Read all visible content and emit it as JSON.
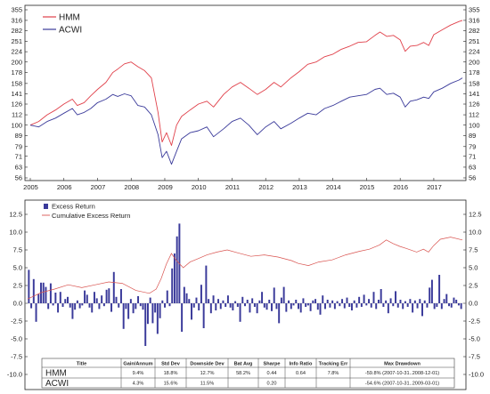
{
  "chart_data": [
    {
      "type": "line",
      "x_ticks": [
        "2005",
        "2006",
        "2007",
        "2008",
        "2009",
        "2010",
        "2011",
        "2012",
        "2013",
        "2014",
        "2015",
        "2016",
        "2017"
      ],
      "y_ticks": [
        56,
        63,
        71,
        79,
        89,
        100,
        112,
        126,
        141,
        158,
        178,
        200,
        224,
        251,
        282,
        316,
        355
      ],
      "y_scale": "log",
      "ylim": [
        56,
        355
      ],
      "x_range": [
        2005.0,
        2017.85
      ],
      "series": [
        {
          "name": "HMM",
          "color": "#e0404a",
          "points": [
            [
              2005.0,
              100
            ],
            [
              2005.25,
              104
            ],
            [
              2005.5,
              112
            ],
            [
              2005.75,
              118
            ],
            [
              2006.0,
              126
            ],
            [
              2006.25,
              133
            ],
            [
              2006.4,
              124
            ],
            [
              2006.6,
              128
            ],
            [
              2006.8,
              138
            ],
            [
              2007.0,
              148
            ],
            [
              2007.25,
              160
            ],
            [
              2007.45,
              178
            ],
            [
              2007.6,
              185
            ],
            [
              2007.8,
              196
            ],
            [
              2008.0,
              200
            ],
            [
              2008.2,
              190
            ],
            [
              2008.4,
              182
            ],
            [
              2008.6,
              168
            ],
            [
              2008.8,
              115
            ],
            [
              2008.92,
              83
            ],
            [
              2009.05,
              92
            ],
            [
              2009.2,
              80
            ],
            [
              2009.35,
              100
            ],
            [
              2009.5,
              110
            ],
            [
              2009.75,
              118
            ],
            [
              2010.0,
              126
            ],
            [
              2010.25,
              130
            ],
            [
              2010.45,
              122
            ],
            [
              2010.75,
              140
            ],
            [
              2011.0,
              152
            ],
            [
              2011.25,
              160
            ],
            [
              2011.5,
              150
            ],
            [
              2011.75,
              140
            ],
            [
              2012.0,
              148
            ],
            [
              2012.25,
              160
            ],
            [
              2012.45,
              152
            ],
            [
              2012.75,
              168
            ],
            [
              2013.0,
              180
            ],
            [
              2013.25,
              195
            ],
            [
              2013.5,
              200
            ],
            [
              2013.75,
              212
            ],
            [
              2014.0,
              218
            ],
            [
              2014.25,
              230
            ],
            [
              2014.5,
              238
            ],
            [
              2014.75,
              248
            ],
            [
              2015.0,
              250
            ],
            [
              2015.25,
              268
            ],
            [
              2015.4,
              278
            ],
            [
              2015.6,
              265
            ],
            [
              2015.8,
              268
            ],
            [
              2016.0,
              255
            ],
            [
              2016.15,
              225
            ],
            [
              2016.3,
              238
            ],
            [
              2016.5,
              240
            ],
            [
              2016.7,
              248
            ],
            [
              2016.85,
              240
            ],
            [
              2017.0,
              270
            ],
            [
              2017.25,
              285
            ],
            [
              2017.5,
              300
            ],
            [
              2017.75,
              312
            ],
            [
              2017.85,
              316
            ]
          ]
        },
        {
          "name": "ACWI",
          "color": "#3a3a9a",
          "points": [
            [
              2005.0,
              100
            ],
            [
              2005.25,
              98
            ],
            [
              2005.5,
              104
            ],
            [
              2005.75,
              108
            ],
            [
              2006.0,
              114
            ],
            [
              2006.25,
              120
            ],
            [
              2006.4,
              112
            ],
            [
              2006.6,
              115
            ],
            [
              2006.8,
              120
            ],
            [
              2007.0,
              128
            ],
            [
              2007.25,
              133
            ],
            [
              2007.45,
              140
            ],
            [
              2007.6,
              137
            ],
            [
              2007.8,
              141
            ],
            [
              2008.0,
              138
            ],
            [
              2008.2,
              124
            ],
            [
              2008.4,
              122
            ],
            [
              2008.6,
              112
            ],
            [
              2008.8,
              90
            ],
            [
              2008.92,
              70
            ],
            [
              2009.05,
              75
            ],
            [
              2009.2,
              65
            ],
            [
              2009.35,
              75
            ],
            [
              2009.5,
              86
            ],
            [
              2009.75,
              92
            ],
            [
              2010.0,
              94
            ],
            [
              2010.25,
              98
            ],
            [
              2010.45,
              88
            ],
            [
              2010.75,
              96
            ],
            [
              2011.0,
              104
            ],
            [
              2011.25,
              108
            ],
            [
              2011.5,
              100
            ],
            [
              2011.75,
              90
            ],
            [
              2012.0,
              98
            ],
            [
              2012.25,
              104
            ],
            [
              2012.45,
              96
            ],
            [
              2012.75,
              102
            ],
            [
              2013.0,
              108
            ],
            [
              2013.25,
              114
            ],
            [
              2013.5,
              112
            ],
            [
              2013.75,
              120
            ],
            [
              2014.0,
              124
            ],
            [
              2014.25,
              130
            ],
            [
              2014.5,
              136
            ],
            [
              2014.75,
              138
            ],
            [
              2015.0,
              140
            ],
            [
              2015.25,
              148
            ],
            [
              2015.4,
              150
            ],
            [
              2015.6,
              140
            ],
            [
              2015.8,
              142
            ],
            [
              2016.0,
              136
            ],
            [
              2016.15,
              122
            ],
            [
              2016.3,
              130
            ],
            [
              2016.5,
              132
            ],
            [
              2016.7,
              136
            ],
            [
              2016.85,
              134
            ],
            [
              2017.0,
              144
            ],
            [
              2017.25,
              150
            ],
            [
              2017.5,
              158
            ],
            [
              2017.75,
              164
            ],
            [
              2017.85,
              168
            ]
          ]
        }
      ]
    },
    {
      "type": "bar",
      "y_ticks": [
        12.5,
        10.0,
        7.5,
        5.0,
        2.5,
        0.0,
        -2.5,
        -5.0,
        -7.5,
        -10.0
      ],
      "ylim": [
        -10.0,
        12.5
      ],
      "x_range": [
        2005.0,
        2017.85
      ],
      "series": [
        {
          "name": "Excess Return",
          "color": "#3a3a9a",
          "values": [
            4.7,
            -0.7,
            3.4,
            -2.6,
            1.3,
            2.9,
            2.9,
            2.3,
            -0.8,
            2.8,
            -0.3,
            1.5,
            -1.3,
            1.6,
            -0.5,
            0.6,
            0.9,
            -0.6,
            -2.2,
            -0.9,
            0.4,
            -0.7,
            -0.3,
            1.8,
            1.2,
            -0.6,
            -1.3,
            1.6,
            0.7,
            -0.8,
            1.1,
            -0.4,
            1.9,
            2.1,
            -1.2,
            4.4,
            0.9,
            -0.6,
            2.0,
            -3.6,
            -0.8,
            -2.2,
            0.6,
            -1.4,
            -0.8,
            1.0,
            -0.4,
            -0.9,
            -6.0,
            -2.9,
            0.8,
            -2.8,
            -1.3,
            -4.3,
            -2.1,
            0.4,
            -0.6,
            1.8,
            -0.4,
            4.9,
            7.0,
            9.4,
            11.2,
            -4.0,
            2.3,
            1.4,
            0.6,
            -2.3,
            -0.6,
            0.8,
            -1.0,
            2.6,
            -3.5,
            5.3,
            0.6,
            -1.4,
            1.1,
            -1.0,
            0.6,
            -0.8,
            0.4,
            -0.5,
            1.1,
            -0.6,
            -1.0,
            0.3,
            -0.5,
            -2.6,
            0.9,
            -0.4,
            0.5,
            -1.3,
            0.7,
            -0.5,
            -1.4,
            0.4,
            1.6,
            -0.6,
            -0.9,
            0.5,
            -1.1,
            2.2,
            -0.8,
            -2.8,
            0.8,
            2.3,
            -1.2,
            0.4,
            -0.8,
            -0.3,
            0.5,
            -0.8,
            -1.3,
            0.7,
            -0.5,
            -0.3,
            -1.1,
            0.4,
            0.6,
            -0.9,
            -1.6,
            1.1,
            -0.8,
            0.5,
            -0.6,
            0.4,
            -0.8,
            0.3,
            -0.4,
            0.6,
            -0.7,
            0.8,
            -0.5,
            -1.0,
            0.4,
            -0.6,
            0.9,
            -0.5,
            1.2,
            -0.3,
            0.6,
            -0.6,
            1.6,
            -0.8,
            0.5,
            2.0,
            -0.5,
            0.4,
            -1.4,
            0.7,
            -0.4,
            1.7,
            -0.6,
            0.5,
            -0.8,
            0.3,
            -0.5,
            0.6,
            -1.3,
            0.4,
            -0.7,
            0.6,
            -1.8,
            0.4,
            -0.6,
            2.2,
            3.3,
            -0.8,
            -0.5,
            4.0,
            -0.8,
            0.6,
            1.3,
            -0.4,
            -0.6,
            0.8,
            0.5,
            -0.3,
            -0.8
          ],
          "type": "bar"
        },
        {
          "name": "Cumulative Excess Return",
          "color": "#d9534f",
          "type": "line",
          "points": [
            [
              2005.0,
              0.6
            ],
            [
              2005.4,
              1.5
            ],
            [
              2005.8,
              2.0
            ],
            [
              2006.2,
              2.6
            ],
            [
              2006.6,
              2.2
            ],
            [
              2007.0,
              2.6
            ],
            [
              2007.4,
              3.0
            ],
            [
              2007.8,
              2.8
            ],
            [
              2008.2,
              1.8
            ],
            [
              2008.6,
              1.4
            ],
            [
              2008.8,
              2.0
            ],
            [
              2008.95,
              3.5
            ],
            [
              2009.1,
              5.5
            ],
            [
              2009.25,
              7.0
            ],
            [
              2009.4,
              6.0
            ],
            [
              2009.6,
              5.0
            ],
            [
              2009.8,
              5.8
            ],
            [
              2010.0,
              6.2
            ],
            [
              2010.3,
              6.8
            ],
            [
              2010.6,
              7.2
            ],
            [
              2010.9,
              7.5
            ],
            [
              2011.2,
              7.1
            ],
            [
              2011.6,
              6.6
            ],
            [
              2012.0,
              6.8
            ],
            [
              2012.4,
              6.5
            ],
            [
              2012.8,
              6.0
            ],
            [
              2013.0,
              5.6
            ],
            [
              2013.3,
              5.3
            ],
            [
              2013.6,
              5.8
            ],
            [
              2014.0,
              6.1
            ],
            [
              2014.4,
              6.8
            ],
            [
              2014.8,
              7.3
            ],
            [
              2015.1,
              7.6
            ],
            [
              2015.4,
              8.2
            ],
            [
              2015.6,
              8.9
            ],
            [
              2015.8,
              8.4
            ],
            [
              2016.0,
              8.0
            ],
            [
              2016.2,
              7.7
            ],
            [
              2016.5,
              7.2
            ],
            [
              2016.7,
              7.6
            ],
            [
              2016.85,
              7.2
            ],
            [
              2017.0,
              8.1
            ],
            [
              2017.2,
              9.0
            ],
            [
              2017.5,
              9.3
            ],
            [
              2017.85,
              8.9
            ]
          ]
        }
      ]
    },
    {
      "type": "table",
      "columns": [
        "Title",
        "Gain/Annum",
        "Std Dev",
        "Downside Dev",
        "Bat Avg",
        "Sharpe",
        "Info Ratio",
        "Tracking Err",
        "Max Drawdown"
      ],
      "rows": [
        [
          "HMM",
          "9.4%",
          "18.8%",
          "12.7%",
          "58.2%",
          "0.44",
          "0.64",
          "7.8%",
          "-59.8% (2007-10-31..2008-12-01)"
        ],
        [
          "ACWI",
          "4.3%",
          "15.6%",
          "11.5%",
          "",
          "0.20",
          "",
          "",
          "-54.6% (2007-10-31..2009-03-01)"
        ]
      ]
    }
  ]
}
